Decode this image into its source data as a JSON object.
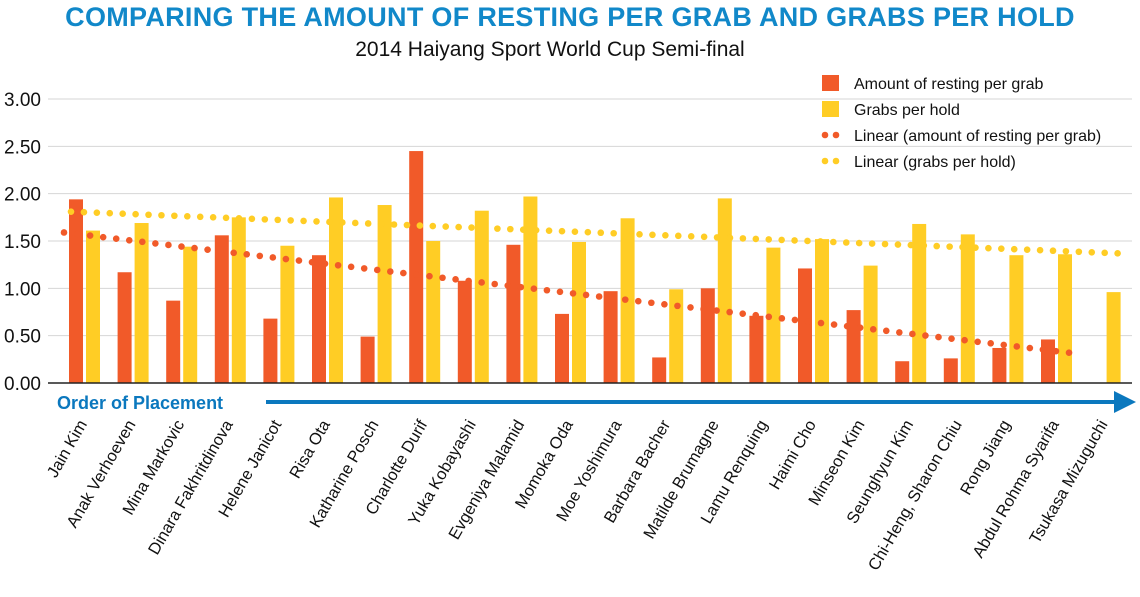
{
  "colors": {
    "resting": "#F15A29",
    "grabs": "#FFCD25",
    "accent": "#0B78BE",
    "title": "#1188C9",
    "grid": "#D6D6D6"
  },
  "chart_data": {
    "type": "bar",
    "title": "COMPARING THE AMOUNT OF RESTING PER GRAB AND GRABS PER HOLD",
    "subtitle": "2014 Haiyang Sport World Cup Semi-final",
    "xlabel": "Order of Placement",
    "ylabel": "",
    "ylim": [
      0,
      3
    ],
    "yticks": [
      "0.00",
      "0.50",
      "1.00",
      "1.50",
      "2.00",
      "2.50",
      "3.00"
    ],
    "grid": true,
    "legend_position": "top-right",
    "categories": [
      "Jain Kim",
      "Anak Verhoeven",
      "Mina Markovic",
      "Dinara Fakhritdinova",
      "Helene Janicot",
      "Risa Ota",
      "Katharine Posch",
      "Charlotte Durif",
      "Yuka Kobayashi",
      "Evgeniya Malamid",
      "Momoka Oda",
      "Moe Yoshimura",
      "Barbara Bacher",
      "Matilde Brumagne",
      "Lamu Renquing",
      "Haimi Cho",
      "Minseon Kim",
      "Seunghyun Kim",
      "Chi-Heng, Sharon Chiu",
      "Rong Jiang",
      "Abdul Rohma Syarifa",
      "Tsukasa Mizuguchi"
    ],
    "series": [
      {
        "name": "Amount of resting per grab",
        "values": [
          1.94,
          1.17,
          0.87,
          1.56,
          0.68,
          1.35,
          0.49,
          2.45,
          1.08,
          1.46,
          0.73,
          0.97,
          0.27,
          1.0,
          0.71,
          1.21,
          0.77,
          0.23,
          0.26,
          0.37,
          0.46,
          null
        ]
      },
      {
        "name": "Grabs per hold",
        "values": [
          1.61,
          1.69,
          1.44,
          1.75,
          1.45,
          1.96,
          1.88,
          1.5,
          1.82,
          1.97,
          1.49,
          1.74,
          0.99,
          1.95,
          1.43,
          1.52,
          1.24,
          1.68,
          1.57,
          1.35,
          1.36,
          0.96
        ]
      }
    ],
    "trendlines": [
      {
        "name": "Linear (amount of resting per grab)",
        "type": "linear",
        "start": 1.59,
        "end": 0.32,
        "over_categories": [
          0,
          20
        ]
      },
      {
        "name": "Linear (grabs per hold)",
        "type": "linear",
        "start": 1.81,
        "end": 1.37,
        "over_categories": [
          0,
          21
        ]
      }
    ]
  }
}
